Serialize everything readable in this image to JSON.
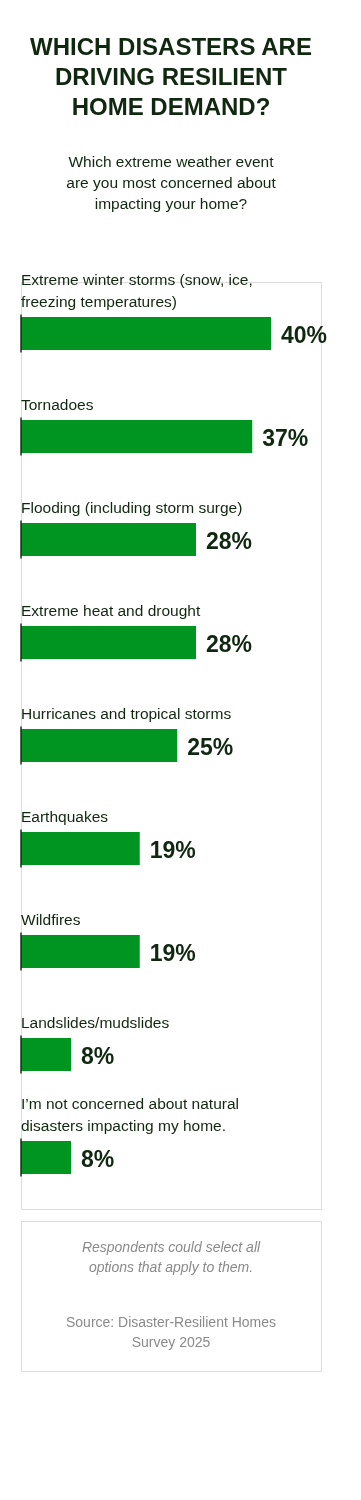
{
  "chart_data": {
    "type": "bar",
    "orientation": "horizontal",
    "title": "WHICH DISASTERS ARE DRIVING RESILIENT HOME DEMAND?",
    "subtitle": "Which extreme weather event are you most concerned about impacting your home?",
    "categories": [
      "Extreme winter storms (snow, ice, freezing temperatures)",
      "Tornadoes",
      "Flooding (including storm surge)",
      "Extreme heat and drought",
      "Hurricanes and tropical storms",
      "Earthquakes",
      "Wildfires",
      "Landslides/mudslides",
      "I’m not concerned about natural disasters impacting my home."
    ],
    "values": [
      40,
      37,
      28,
      28,
      25,
      19,
      19,
      8,
      8
    ],
    "value_labels": [
      "40%",
      "37%",
      "28%",
      "28%",
      "25%",
      "19%",
      "19%",
      "8%",
      "8%"
    ],
    "color": "#009420",
    "annotations": [
      "Respondents could select all options that apply to them.",
      "Source: Disaster-Resilient Homes Survey 2025"
    ]
  }
}
